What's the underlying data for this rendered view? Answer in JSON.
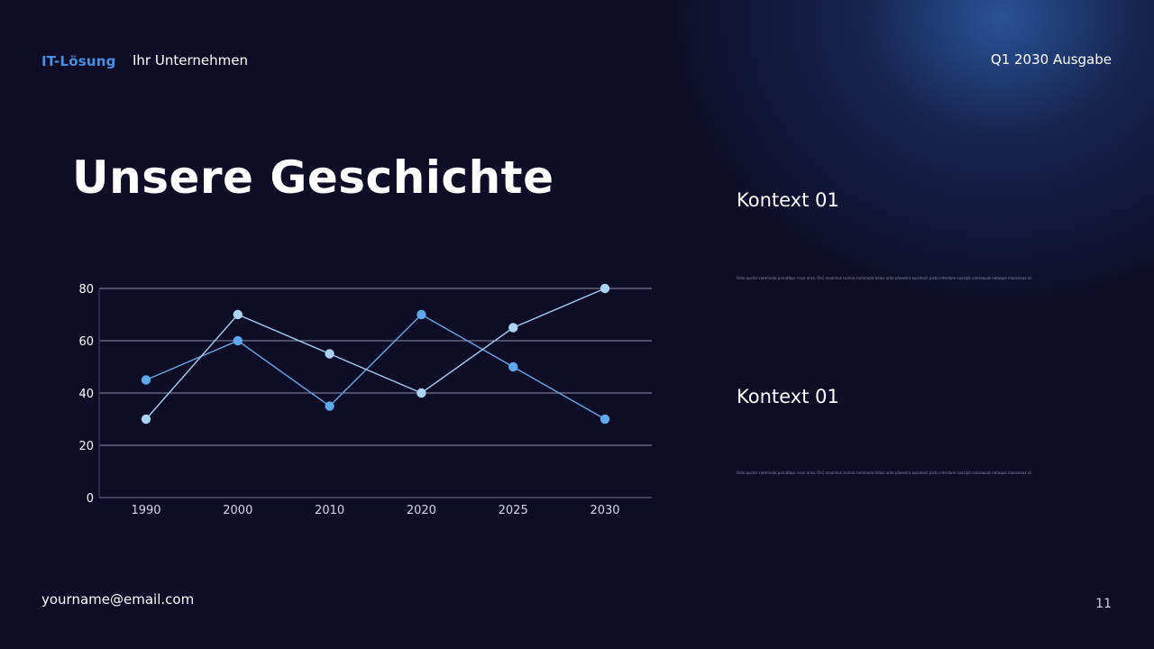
{
  "header": {
    "brand": "IT-Lösung",
    "company": "Ihr Unternehmen",
    "edition": "Q1 2030 Ausgabe"
  },
  "title": "Unsere Geschichte",
  "contexts": [
    {
      "title": "Kontext 01",
      "body": "Odio auctor commodo penatibus risus urna. Orci maximus lacinia commodo tellus ante pharetra euismod. Justo interdum suscipit consequat natoque maecenas id."
    },
    {
      "title": "Kontext 01",
      "body": "Odio auctor commodo penatibus risus urna. Orci maximus lacinia commodo tellus ante pharetra euismod. Justo interdum suscipit consequat natoque maecenas id."
    }
  ],
  "footer": {
    "email": "yourname@email.com",
    "page": "11"
  },
  "colors": {
    "background": "#0e0c26",
    "accent": "#4a90e2",
    "series_a": "#6aa8e8",
    "series_b": "#a8d0f0",
    "grid": "#8c8fae"
  },
  "chart_data": {
    "type": "line",
    "categories": [
      "1990",
      "2000",
      "2010",
      "2020",
      "2025",
      "2030"
    ],
    "series": [
      {
        "values": [
          45,
          60,
          35,
          70,
          50,
          30
        ]
      },
      {
        "values": [
          30,
          70,
          55,
          40,
          65,
          80
        ]
      }
    ],
    "ylim": [
      0,
      80
    ],
    "yticks": [
      0,
      20,
      40,
      60,
      80
    ],
    "grid": true,
    "title": "",
    "xlabel": "",
    "ylabel": ""
  }
}
